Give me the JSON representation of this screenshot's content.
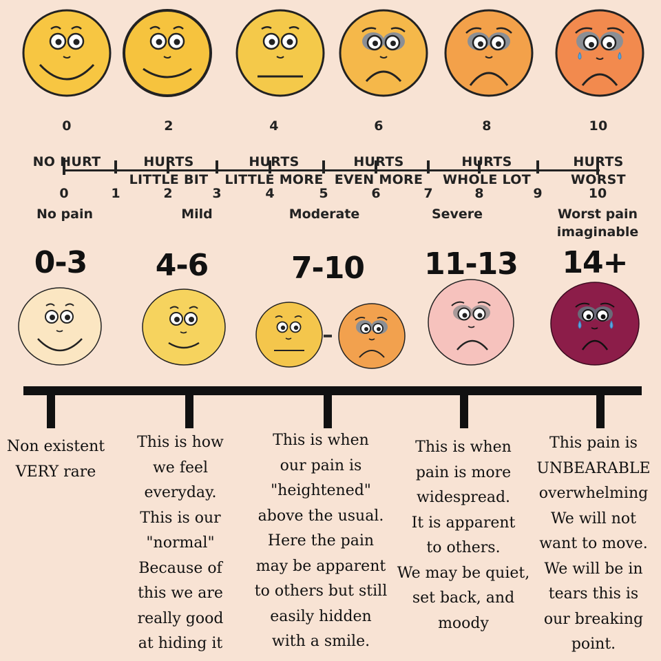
{
  "faces_scale": [
    {
      "value": "0",
      "label": "NO HURT",
      "color": "#f7c642",
      "expression": "happy"
    },
    {
      "value": "2",
      "label": "HURTS\nLITTLE BIT",
      "color": "#f6c33e",
      "expression": "smile"
    },
    {
      "value": "4",
      "label": "HURTS\nLITTLE MORE",
      "color": "#f4c94a",
      "expression": "neutral"
    },
    {
      "value": "6",
      "label": "HURTS\nEVEN MORE",
      "color": "#f5b84a",
      "expression": "sad"
    },
    {
      "value": "8",
      "label": "HURTS\nWHOLE LOT",
      "color": "#f3a14a",
      "expression": "sad"
    },
    {
      "value": "10",
      "label": "HURTS\nWORST",
      "color": "#f28a4e",
      "expression": "crying"
    }
  ],
  "numeric_scale": {
    "ticks": [
      "0",
      "1",
      "2",
      "3",
      "4",
      "5",
      "6",
      "7",
      "8",
      "9",
      "10"
    ],
    "categories": [
      {
        "label": "No pain"
      },
      {
        "label": "Mild"
      },
      {
        "label": "Moderate"
      },
      {
        "label": "Severe"
      },
      {
        "label": "Worst pain\nimaginable"
      }
    ]
  },
  "levels": [
    {
      "range": "0-3",
      "color": "#fbe6c2",
      "description": "Non existent\nVERY rare"
    },
    {
      "range": "4-6",
      "color": "#f6d35e",
      "description": "This is how\nwe feel\neveryday.\nThis is our\n\"normal\"\nBecause of\nthis we are\nreally good\nat hiding it"
    },
    {
      "range": "7-10",
      "color": "#f4c64c",
      "color2": "#f2a14e",
      "description": "This is when\nour pain is\n\"heightened\"\nabove the usual.\nHere the pain\nmay be apparent\nto others but still\neasily hidden\nwith a smile."
    },
    {
      "range": "11-13",
      "color": "#f6c2bd",
      "description": "This is when\npain is more\nwidespread.\nIt is apparent\nto others.\nWe may be quiet,\nset back, and\nmoody"
    },
    {
      "range": "14+",
      "color": "#8c1d49",
      "description": "This pain is\nUNBEARABLE\noverwhelming\nWe will not\nwant to move.\nWe will be in\ntears this is\nour breaking\npoint."
    }
  ],
  "colors": {
    "background": "#f8e3d4",
    "line": "#1a1a1a",
    "tear": "#5ba6e0",
    "eye_shadow": "#8b8f95"
  }
}
